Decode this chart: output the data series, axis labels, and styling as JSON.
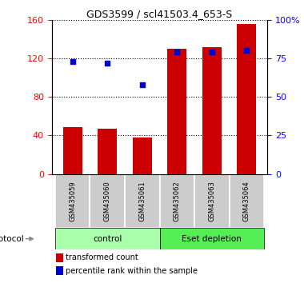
{
  "title": "GDS3599 / scl41503.4_653-S",
  "samples": [
    "GSM435059",
    "GSM435060",
    "GSM435061",
    "GSM435062",
    "GSM435063",
    "GSM435064"
  ],
  "bar_values": [
    49,
    47,
    38,
    130,
    132,
    156
  ],
  "percentile_values": [
    73,
    72,
    58,
    79,
    79,
    80
  ],
  "left_ylim": [
    0,
    160
  ],
  "right_ylim": [
    0,
    100
  ],
  "left_yticks": [
    0,
    40,
    80,
    120,
    160
  ],
  "right_yticks": [
    0,
    25,
    50,
    75,
    100
  ],
  "right_yticklabels": [
    "0",
    "25",
    "50",
    "75",
    "100%"
  ],
  "bar_color": "#cc0000",
  "dot_color": "#0000cc",
  "control_label": "control",
  "eset_label": "Eset depletion",
  "protocol_label": "protocol",
  "legend_bar_label": "transformed count",
  "legend_dot_label": "percentile rank within the sample",
  "control_color": "#aaffaa",
  "eset_color": "#55ee55",
  "tick_label_bg": "#cccccc",
  "n_control": 3,
  "n_eset": 3
}
